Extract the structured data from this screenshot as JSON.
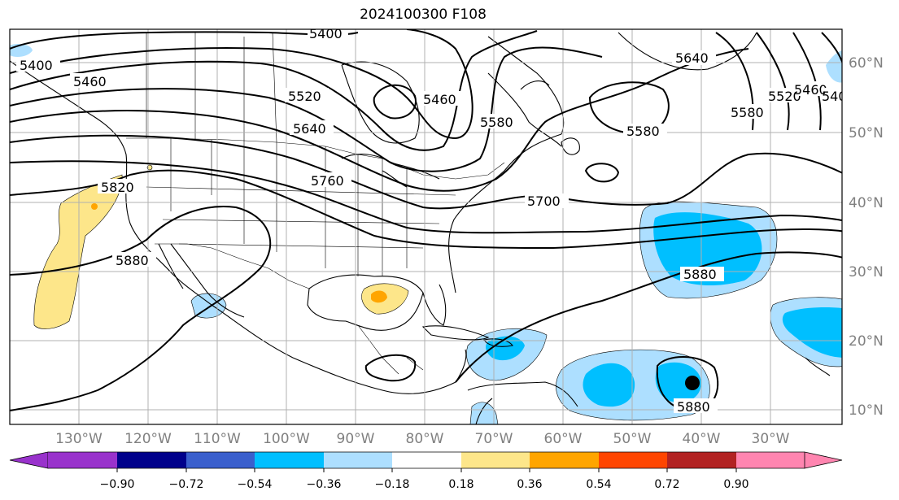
{
  "title": "2024100300 F108",
  "map": {
    "lon_labels": [
      "130°W",
      "120°W",
      "110°W",
      "100°W",
      "90°W",
      "80°W",
      "70°W",
      "60°W",
      "50°W",
      "40°W",
      "30°W"
    ],
    "lat_labels": [
      "60°N",
      "50°N",
      "40°N",
      "30°N",
      "20°N",
      "10°N"
    ],
    "contour_labels": [
      "5400",
      "5460",
      "5520",
      "5580",
      "5640",
      "5700",
      "5760",
      "5820",
      "5880"
    ],
    "marker": "hurricane-center"
  },
  "colorbar": {
    "ticks": [
      "−0.90",
      "−0.72",
      "−0.54",
      "−0.36",
      "−0.18",
      "0.18",
      "0.36",
      "0.54",
      "0.72",
      "0.90"
    ],
    "colors": [
      "#9932cc",
      "#00008b",
      "#3a5fcd",
      "#00bfff",
      "#addfff",
      "#ffffff",
      "#fde68a",
      "#ffa500",
      "#ff4500",
      "#b22222",
      "#ff85b0"
    ]
  },
  "palette": {
    "light_blue": "#addfff",
    "mid_blue": "#00bfff",
    "light_yellow": "#fde68a",
    "orange": "#ffa500",
    "grid": "#b0b0b0"
  }
}
